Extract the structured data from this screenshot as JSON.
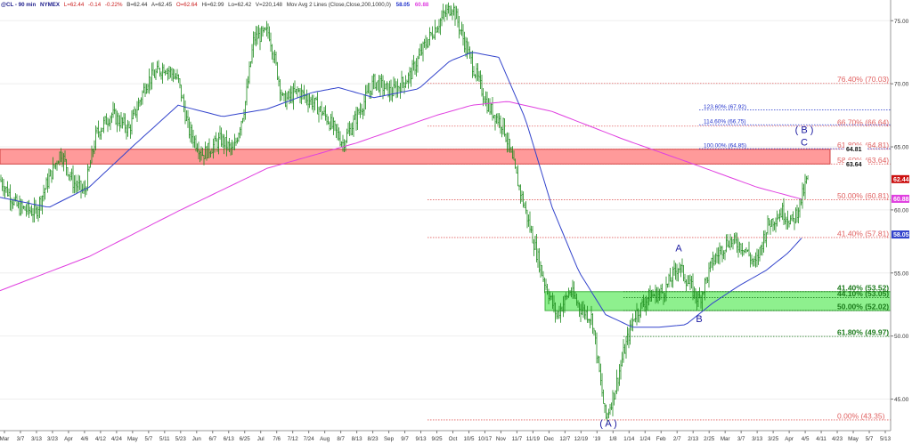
{
  "header": {
    "symbol": "@CL - 90 min",
    "exchange": "NYMEX",
    "last": "L=62.44",
    "change": "-0.14",
    "change_pct": "-0.22%",
    "bid": "B=62.44",
    "ask": "A=62.45",
    "open": "O=62.64",
    "high": "Hi=62.99",
    "low": "Lo=62.42",
    "volume": "V=220,148",
    "study": "Mov Avg 2 Lines (Close,Close,200,1000,0)",
    "ma_fast_value": "58.05",
    "ma_slow_value": "60.88"
  },
  "colors": {
    "price_bar": "#1a8a1a",
    "ma_fast": "#3344cc",
    "ma_slow": "#e040e0",
    "red_zone": "#ff9a9a",
    "green_zone": "#8ef08e",
    "fib_red": "#e06060",
    "fib_green": "#1a7a1a",
    "fib_blue": "#2233cc",
    "wave_label": "#1a1aa0"
  },
  "chart_data": {
    "type": "ohlc",
    "ylim": [
      42.5,
      76.5
    ],
    "y_ticks": [
      45.0,
      50.0,
      55.0,
      60.0,
      65.0,
      70.0,
      75.0
    ],
    "y_tick_labels": [
      "45.00",
      "50.00",
      "55.00",
      "60.00",
      "65.00",
      "70.00",
      "75.00"
    ],
    "x_tick_labels": [
      "Mar",
      "3/7",
      "3/13",
      "3/23",
      "Apr",
      "4/6",
      "4/12",
      "4/24",
      "May",
      "5/7",
      "5/11",
      "5/23",
      "Jun",
      "6/7",
      "6/13",
      "6/25",
      "Jul",
      "7/6",
      "7/12",
      "7/24",
      "Aug",
      "8/7",
      "8/13",
      "8/23",
      "Sep",
      "9/7",
      "9/13",
      "9/25",
      "Oct",
      "10/5",
      "10/17",
      "Nov",
      "11/7",
      "11/19",
      "Dec",
      "12/7",
      "12/19",
      "'19",
      "1/8",
      "1/14",
      "1/24",
      "Feb",
      "2/7",
      "2/13",
      "2/25",
      "Mar",
      "3/7",
      "3/13",
      "3/25",
      "Apr",
      "4/5",
      "4/11",
      "4/23",
      "May",
      "5/7",
      "5/13"
    ],
    "price_keypoints": [
      {
        "t": 0,
        "v": 62.4
      },
      {
        "t": 0.02,
        "v": 60.2
      },
      {
        "t": 0.04,
        "v": 59.8
      },
      {
        "t": 0.055,
        "v": 62.5
      },
      {
        "t": 0.068,
        "v": 64.6
      },
      {
        "t": 0.082,
        "v": 62.2
      },
      {
        "t": 0.095,
        "v": 61.4
      },
      {
        "t": 0.108,
        "v": 66.0
      },
      {
        "t": 0.125,
        "v": 67.6
      },
      {
        "t": 0.145,
        "v": 66.4
      },
      {
        "t": 0.165,
        "v": 70.2
      },
      {
        "t": 0.185,
        "v": 71.4
      },
      {
        "t": 0.2,
        "v": 70.3
      },
      {
        "t": 0.212,
        "v": 66.3
      },
      {
        "t": 0.228,
        "v": 64.4
      },
      {
        "t": 0.248,
        "v": 65.6
      },
      {
        "t": 0.262,
        "v": 64.6
      },
      {
        "t": 0.275,
        "v": 68.3
      },
      {
        "t": 0.285,
        "v": 73.6
      },
      {
        "t": 0.302,
        "v": 74.1
      },
      {
        "t": 0.318,
        "v": 68.6
      },
      {
        "t": 0.335,
        "v": 69.4
      },
      {
        "t": 0.352,
        "v": 68.5
      },
      {
        "t": 0.368,
        "v": 67.2
      },
      {
        "t": 0.385,
        "v": 65.3
      },
      {
        "t": 0.402,
        "v": 67.6
      },
      {
        "t": 0.42,
        "v": 70.2
      },
      {
        "t": 0.44,
        "v": 69.3
      },
      {
        "t": 0.46,
        "v": 70.6
      },
      {
        "t": 0.478,
        "v": 73.2
      },
      {
        "t": 0.495,
        "v": 75.1
      },
      {
        "t": 0.508,
        "v": 76.2
      },
      {
        "t": 0.52,
        "v": 73.6
      },
      {
        "t": 0.532,
        "v": 71.2
      },
      {
        "t": 0.548,
        "v": 68.2
      },
      {
        "t": 0.565,
        "v": 66.7
      },
      {
        "t": 0.58,
        "v": 62.6
      },
      {
        "t": 0.595,
        "v": 58.6
      },
      {
        "t": 0.61,
        "v": 54.6
      },
      {
        "t": 0.625,
        "v": 51.6
      },
      {
        "t": 0.64,
        "v": 53.6
      },
      {
        "t": 0.652,
        "v": 52.2
      },
      {
        "t": 0.665,
        "v": 51.4
      },
      {
        "t": 0.672,
        "v": 47.6
      },
      {
        "t": 0.68,
        "v": 43.4
      },
      {
        "t": 0.69,
        "v": 45.6
      },
      {
        "t": 0.7,
        "v": 48.6
      },
      {
        "t": 0.712,
        "v": 51.6
      },
      {
        "t": 0.728,
        "v": 53.1
      },
      {
        "t": 0.745,
        "v": 53.5
      },
      {
        "t": 0.762,
        "v": 55.6
      },
      {
        "t": 0.772,
        "v": 54.3
      },
      {
        "t": 0.785,
        "v": 52.8
      },
      {
        "t": 0.8,
        "v": 55.9
      },
      {
        "t": 0.818,
        "v": 57.6
      },
      {
        "t": 0.835,
        "v": 57.1
      },
      {
        "t": 0.848,
        "v": 55.6
      },
      {
        "t": 0.862,
        "v": 58.8
      },
      {
        "t": 0.878,
        "v": 59.9
      },
      {
        "t": 0.89,
        "v": 59.0
      },
      {
        "t": 0.9,
        "v": 60.9
      },
      {
        "t": 0.907,
        "v": 62.6
      }
    ],
    "ma_fast_points": [
      {
        "t": 0.0,
        "v": 61.0
      },
      {
        "t": 0.055,
        "v": 60.2
      },
      {
        "t": 0.1,
        "v": 61.8
      },
      {
        "t": 0.15,
        "v": 65.1
      },
      {
        "t": 0.2,
        "v": 68.3
      },
      {
        "t": 0.25,
        "v": 67.4
      },
      {
        "t": 0.3,
        "v": 68.0
      },
      {
        "t": 0.35,
        "v": 69.3
      },
      {
        "t": 0.38,
        "v": 69.7
      },
      {
        "t": 0.42,
        "v": 68.9
      },
      {
        "t": 0.47,
        "v": 69.6
      },
      {
        "t": 0.505,
        "v": 71.8
      },
      {
        "t": 0.53,
        "v": 72.5
      },
      {
        "t": 0.56,
        "v": 72.1
      },
      {
        "t": 0.59,
        "v": 67.2
      },
      {
        "t": 0.62,
        "v": 60.2
      },
      {
        "t": 0.65,
        "v": 55.1
      },
      {
        "t": 0.68,
        "v": 51.7
      },
      {
        "t": 0.71,
        "v": 50.7
      },
      {
        "t": 0.74,
        "v": 50.7
      },
      {
        "t": 0.77,
        "v": 50.9
      },
      {
        "t": 0.8,
        "v": 52.6
      },
      {
        "t": 0.83,
        "v": 54.0
      },
      {
        "t": 0.86,
        "v": 55.2
      },
      {
        "t": 0.885,
        "v": 56.6
      },
      {
        "t": 0.903,
        "v": 58.0
      }
    ],
    "ma_slow_points": [
      {
        "t": 0.0,
        "v": 53.6
      },
      {
        "t": 0.1,
        "v": 56.3
      },
      {
        "t": 0.2,
        "v": 59.9
      },
      {
        "t": 0.3,
        "v": 63.3
      },
      {
        "t": 0.4,
        "v": 65.3
      },
      {
        "t": 0.49,
        "v": 67.5
      },
      {
        "t": 0.53,
        "v": 68.3
      },
      {
        "t": 0.57,
        "v": 68.6
      },
      {
        "t": 0.62,
        "v": 67.8
      },
      {
        "t": 0.7,
        "v": 65.6
      },
      {
        "t": 0.78,
        "v": 63.6
      },
      {
        "t": 0.85,
        "v": 61.8
      },
      {
        "t": 0.903,
        "v": 60.8
      }
    ],
    "zones": [
      {
        "name": "resistance-zone",
        "from": 63.64,
        "to": 64.81,
        "color": "red"
      },
      {
        "name": "support-zone",
        "from": 52.02,
        "to": 53.52,
        "color": "green"
      }
    ],
    "fib_levels": [
      {
        "label": "76.40% (70.03)",
        "value": 70.03,
        "color": "red"
      },
      {
        "label": "66.70% (66.64)",
        "value": 66.64,
        "color": "red"
      },
      {
        "label": "61.80% (64.81)",
        "value": 64.81,
        "color": "red"
      },
      {
        "label": "58.60% (63.64)",
        "value": 63.64,
        "color": "red"
      },
      {
        "label": "50.00% (60.81)",
        "value": 60.81,
        "color": "red"
      },
      {
        "label": "41.40% (57.81)",
        "value": 57.81,
        "color": "red"
      },
      {
        "label": "41.40% (53.52)",
        "value": 53.52,
        "color": "green"
      },
      {
        "label": "44.10% (53.05)",
        "value": 53.05,
        "color": "green"
      },
      {
        "label": "50.00% (52.02)",
        "value": 52.02,
        "color": "green"
      },
      {
        "label": "61.80% (49.97)",
        "value": 49.97,
        "color": "green"
      },
      {
        "label": "0.00% (43.35)",
        "value": 43.35,
        "color": "red"
      }
    ],
    "fib_extensions": [
      {
        "label": "123.60% (67.92)",
        "value": 67.92
      },
      {
        "label": "114.60% (66.75)",
        "value": 66.75
      },
      {
        "label": "100.00% (64.85)",
        "value": 64.85
      }
    ],
    "wave_labels": [
      {
        "label": "( A )",
        "t": 0.683,
        "v": 42.8
      },
      {
        "label": "A",
        "t": 0.762,
        "v": 56.7
      },
      {
        "label": "B",
        "t": 0.785,
        "v": 51.1
      },
      {
        "label": "( B )",
        "t": 0.903,
        "v": 66.1
      },
      {
        "label": "C",
        "t": 0.903,
        "v": 65.1
      }
    ],
    "price_tags": [
      {
        "label": "64.81",
        "value": 64.81,
        "style": "red"
      },
      {
        "label": "63.64",
        "value": 63.64,
        "style": "red"
      },
      {
        "label": "62.44",
        "value": 62.44,
        "style": "last"
      },
      {
        "label": "60.88",
        "value": 60.88,
        "style": "magenta"
      },
      {
        "label": "58.05",
        "value": 58.05,
        "style": "blue"
      }
    ]
  }
}
